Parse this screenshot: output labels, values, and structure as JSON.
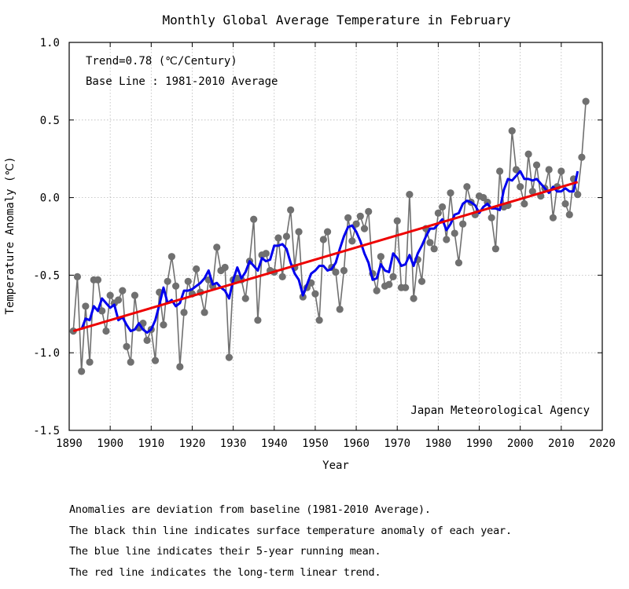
{
  "chart_data": {
    "type": "line",
    "title": "Monthly Global Average Temperature in February",
    "xlabel": "Year",
    "ylabel": "Temperature Anomaly (℃)",
    "xlim": [
      1890,
      2020
    ],
    "ylim": [
      -1.5,
      1.0
    ],
    "x_ticks": [
      1890,
      1900,
      1910,
      1920,
      1930,
      1940,
      1950,
      1960,
      1970,
      1980,
      1990,
      2000,
      2010,
      2020
    ],
    "y_ticks": [
      1.0,
      0.5,
      0.0,
      -0.5,
      -1.0,
      -1.5
    ],
    "x_tick_labels": [
      "1890",
      "1900",
      "1910",
      "1920",
      "1930",
      "1940",
      "1950",
      "1960",
      "1970",
      "1980",
      "1990",
      "2000",
      "2010",
      "2020"
    ],
    "y_tick_labels": [
      "1.0",
      "0.5",
      "0.0",
      "-0.5",
      "-1.0",
      "-1.5"
    ],
    "grid": true,
    "annotations": [
      "Trend=0.78 (℃/Century)",
      "Base Line : 1981-2010 Average",
      "Japan Meteorological Agency"
    ],
    "series": [
      {
        "color": "#707070",
        "style": "line-with-markers",
        "x": [
          1891,
          1892,
          1893,
          1894,
          1895,
          1896,
          1897,
          1898,
          1899,
          1900,
          1901,
          1902,
          1903,
          1904,
          1905,
          1906,
          1907,
          1908,
          1909,
          1910,
          1911,
          1912,
          1913,
          1914,
          1915,
          1916,
          1917,
          1918,
          1919,
          1920,
          1921,
          1922,
          1923,
          1924,
          1925,
          1926,
          1927,
          1928,
          1929,
          1930,
          1931,
          1932,
          1933,
          1934,
          1935,
          1936,
          1937,
          1938,
          1939,
          1940,
          1941,
          1942,
          1943,
          1944,
          1945,
          1946,
          1947,
          1948,
          1949,
          1950,
          1951,
          1952,
          1953,
          1954,
          1955,
          1956,
          1957,
          1958,
          1959,
          1960,
          1961,
          1962,
          1963,
          1964,
          1965,
          1966,
          1967,
          1968,
          1969,
          1970,
          1971,
          1972,
          1973,
          1974,
          1975,
          1976,
          1977,
          1978,
          1979,
          1980,
          1981,
          1982,
          1983,
          1984,
          1985,
          1986,
          1987,
          1988,
          1989,
          1990,
          1991,
          1992,
          1993,
          1994,
          1995,
          1996,
          1997,
          1998,
          1999,
          2000,
          2001,
          2002,
          2003,
          2004,
          2005,
          2006,
          2007,
          2008,
          2009,
          2010,
          2011,
          2012,
          2013,
          2014,
          2015,
          2016
        ],
        "values": [
          -0.86,
          -0.51,
          -1.12,
          -0.7,
          -1.06,
          -0.53,
          -0.53,
          -0.73,
          -0.86,
          -0.63,
          -0.68,
          -0.66,
          -0.6,
          -0.96,
          -1.06,
          -0.63,
          -0.84,
          -0.81,
          -0.92,
          -0.85,
          -1.05,
          -0.61,
          -0.82,
          -0.54,
          -0.38,
          -0.57,
          -1.09,
          -0.74,
          -0.54,
          -0.62,
          -0.46,
          -0.61,
          -0.74,
          -0.53,
          -0.57,
          -0.32,
          -0.47,
          -0.45,
          -1.03,
          -0.53,
          -0.52,
          -0.53,
          -0.65,
          -0.41,
          -0.14,
          -0.79,
          -0.37,
          -0.36,
          -0.47,
          -0.48,
          -0.26,
          -0.51,
          -0.25,
          -0.08,
          -0.45,
          -0.22,
          -0.64,
          -0.58,
          -0.55,
          -0.62,
          -0.79,
          -0.27,
          -0.22,
          -0.45,
          -0.48,
          -0.72,
          -0.47,
          -0.13,
          -0.28,
          -0.17,
          -0.12,
          -0.2,
          -0.09,
          -0.49,
          -0.6,
          -0.38,
          -0.57,
          -0.56,
          -0.51,
          -0.15,
          -0.58,
          -0.58,
          0.02,
          -0.65,
          -0.4,
          -0.54,
          -0.2,
          -0.29,
          -0.33,
          -0.1,
          -0.06,
          -0.27,
          0.03,
          -0.23,
          -0.42,
          -0.17,
          0.07,
          -0.03,
          -0.11,
          0.01,
          0.0,
          -0.03,
          -0.13,
          -0.33,
          0.17,
          -0.06,
          -0.05,
          0.43,
          0.18,
          0.07,
          -0.04,
          0.28,
          0.04,
          0.21,
          0.01,
          0.06,
          0.18,
          -0.13,
          0.07,
          0.17,
          -0.04,
          -0.11,
          0.12,
          0.02,
          0.26,
          0.62
        ]
      },
      {
        "color": "#0000ee",
        "style": "line",
        "x": [
          1893,
          1894,
          1895,
          1896,
          1897,
          1898,
          1899,
          1900,
          1901,
          1902,
          1903,
          1904,
          1905,
          1906,
          1907,
          1908,
          1909,
          1910,
          1911,
          1912,
          1913,
          1914,
          1915,
          1916,
          1917,
          1918,
          1919,
          1920,
          1921,
          1922,
          1923,
          1924,
          1925,
          1926,
          1927,
          1928,
          1929,
          1930,
          1931,
          1932,
          1933,
          1934,
          1935,
          1936,
          1937,
          1938,
          1939,
          1940,
          1941,
          1942,
          1943,
          1944,
          1945,
          1946,
          1947,
          1948,
          1949,
          1950,
          1951,
          1952,
          1953,
          1954,
          1955,
          1956,
          1957,
          1958,
          1959,
          1960,
          1961,
          1962,
          1963,
          1964,
          1965,
          1966,
          1967,
          1968,
          1969,
          1970,
          1971,
          1972,
          1973,
          1974,
          1975,
          1976,
          1977,
          1978,
          1979,
          1980,
          1981,
          1982,
          1983,
          1984,
          1985,
          1986,
          1987,
          1988,
          1989,
          1990,
          1991,
          1992,
          1993,
          1994,
          1995,
          1996,
          1997,
          1998,
          1999,
          2000,
          2001,
          2002,
          2003,
          2004,
          2005,
          2006,
          2007,
          2008,
          2009,
          2010,
          2011,
          2012,
          2013,
          2014
        ],
        "values": [
          -0.85,
          -0.78,
          -0.79,
          -0.7,
          -0.73,
          -0.65,
          -0.68,
          -0.71,
          -0.69,
          -0.79,
          -0.77,
          -0.82,
          -0.86,
          -0.85,
          -0.81,
          -0.85,
          -0.87,
          -0.85,
          -0.79,
          -0.69,
          -0.58,
          -0.68,
          -0.66,
          -0.7,
          -0.68,
          -0.6,
          -0.6,
          -0.59,
          -0.57,
          -0.55,
          -0.52,
          -0.47,
          -0.56,
          -0.55,
          -0.58,
          -0.6,
          -0.65,
          -0.53,
          -0.45,
          -0.52,
          -0.48,
          -0.41,
          -0.44,
          -0.47,
          -0.39,
          -0.41,
          -0.4,
          -0.31,
          -0.31,
          -0.3,
          -0.33,
          -0.42,
          -0.49,
          -0.53,
          -0.63,
          -0.56,
          -0.49,
          -0.47,
          -0.44,
          -0.44,
          -0.47,
          -0.46,
          -0.42,
          -0.33,
          -0.25,
          -0.19,
          -0.18,
          -0.22,
          -0.28,
          -0.36,
          -0.42,
          -0.53,
          -0.52,
          -0.43,
          -0.47,
          -0.48,
          -0.36,
          -0.39,
          -0.44,
          -0.43,
          -0.37,
          -0.44,
          -0.36,
          -0.31,
          -0.25,
          -0.2,
          -0.2,
          -0.17,
          -0.14,
          -0.21,
          -0.17,
          -0.11,
          -0.1,
          -0.04,
          -0.02,
          -0.03,
          -0.05,
          -0.1,
          -0.06,
          -0.04,
          -0.07,
          -0.07,
          -0.08,
          0.05,
          0.12,
          0.11,
          0.14,
          0.17,
          0.12,
          0.12,
          0.11,
          0.12,
          0.09,
          0.06,
          0.03,
          0.07,
          0.04,
          0.04,
          0.06,
          0.04,
          0.04,
          0.17
        ]
      },
      {
        "color": "#ee0000",
        "style": "line",
        "x": [
          1891,
          2014
        ],
        "values": [
          -0.86,
          0.1
        ]
      }
    ]
  },
  "notes": [
    "Anomalies are deviation from baseline (1981-2010 Average).",
    "The black thin line indicates surface temperature anomaly of each year.",
    "The blue line indicates their 5-year running mean.",
    "The red line indicates the long-term linear trend."
  ]
}
